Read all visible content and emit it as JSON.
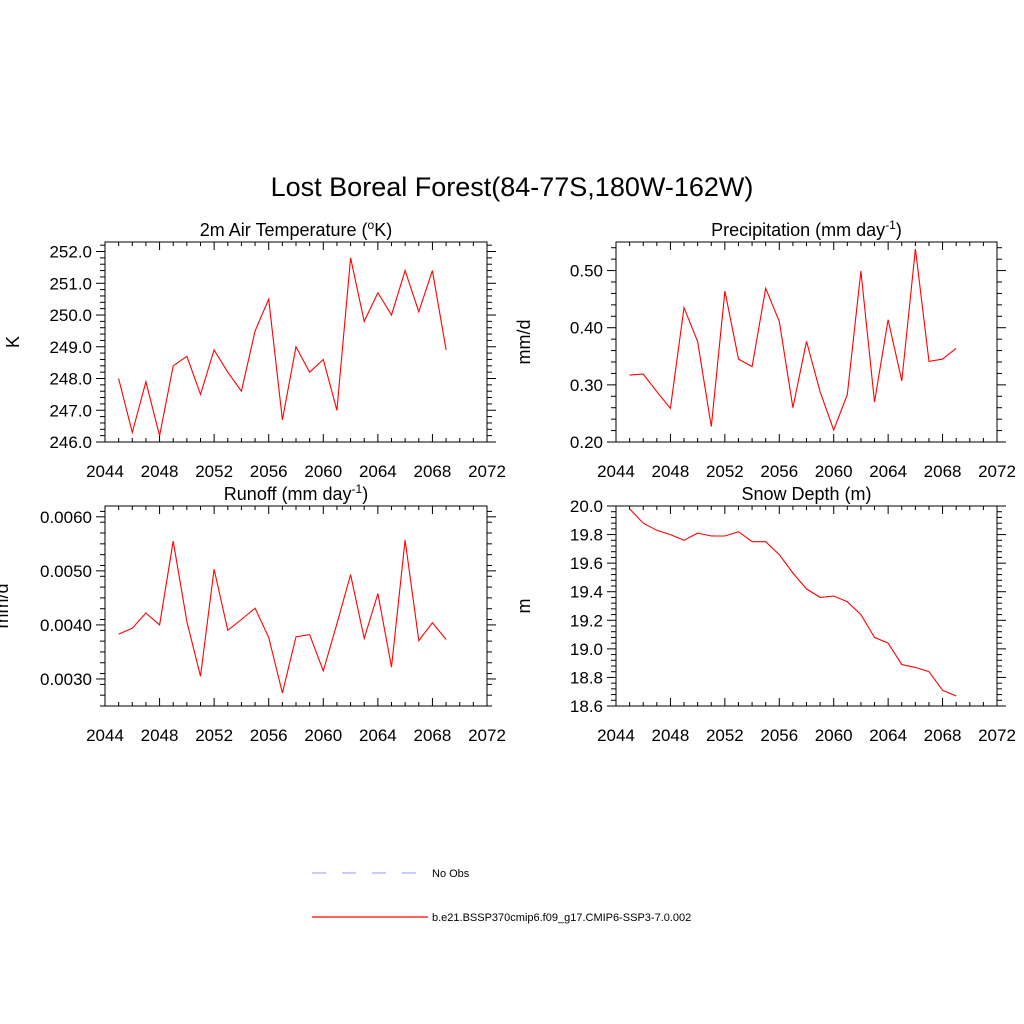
{
  "title": "Lost Boreal Forest(84-77S,180W-162W)",
  "colors": {
    "model": "#ff0000",
    "obs": "#aaaaff",
    "axis": "#000000"
  },
  "legend": {
    "obs_label": "No Obs",
    "model_label": "b.e21.BSSP370cmip6.f09_g17.CMIP6-SSP3-7.0.002"
  },
  "chart_data": [
    {
      "type": "line",
      "title": "2m Air Temperature (",
      "title_sup": "o",
      "title_after": "K)",
      "ylabel": "K",
      "xlim": [
        2044,
        2072
      ],
      "ylim": [
        246.0,
        252.3
      ],
      "xticks": [
        2044,
        2048,
        2052,
        2056,
        2060,
        2064,
        2068,
        2072
      ],
      "yticks": [
        246.0,
        247.0,
        248.0,
        249.0,
        250.0,
        251.0,
        252.0
      ],
      "ytick_labels": [
        "246.0",
        "247.0",
        "248.0",
        "249.0",
        "250.0",
        "251.0",
        "252.0"
      ],
      "x": [
        2045,
        2046,
        2047,
        2048,
        2049,
        2050,
        2051,
        2052,
        2053,
        2054,
        2055,
        2056,
        2057,
        2058,
        2059,
        2060,
        2061,
        2062,
        2063,
        2064,
        2065,
        2066,
        2067,
        2068,
        2069
      ],
      "series": [
        {
          "name": "b.e21.BSSP370cmip6.f09_g17.CMIP6-SSP3-7.0.002",
          "values": [
            248.0,
            246.3,
            247.9,
            246.2,
            248.4,
            248.7,
            247.5,
            248.9,
            248.2,
            247.6,
            249.5,
            250.5,
            246.7,
            249.0,
            248.2,
            248.6,
            247.0,
            251.8,
            249.8,
            250.7,
            250.0,
            251.4,
            250.1,
            251.4,
            248.9
          ]
        }
      ]
    },
    {
      "type": "line",
      "title": "Precipitation (mm day",
      "title_sup": "-1",
      "title_after": ")",
      "ylabel": "mm/d",
      "xlim": [
        2044,
        2072
      ],
      "ylim": [
        0.2,
        0.55
      ],
      "xticks": [
        2044,
        2048,
        2052,
        2056,
        2060,
        2064,
        2068,
        2072
      ],
      "yticks": [
        0.2,
        0.3,
        0.4,
        0.5
      ],
      "ytick_labels": [
        "0.20",
        "0.30",
        "0.40",
        "0.50"
      ],
      "x": [
        2045,
        2046,
        2047,
        2048,
        2049,
        2050,
        2051,
        2052,
        2053,
        2054,
        2055,
        2056,
        2057,
        2058,
        2059,
        2060,
        2061,
        2062,
        2063,
        2064,
        2065,
        2066,
        2067,
        2068,
        2069
      ],
      "series": [
        {
          "name": "b.e21.BSSP370cmip6.f09_g17.CMIP6-SSP3-7.0.002",
          "values": [
            0.317,
            0.319,
            0.288,
            0.259,
            0.435,
            0.376,
            0.227,
            0.464,
            0.345,
            0.332,
            0.469,
            0.411,
            0.26,
            0.376,
            0.288,
            0.221,
            0.283,
            0.499,
            0.27,
            0.414,
            0.307,
            0.538,
            0.341,
            0.345,
            0.364
          ]
        }
      ]
    },
    {
      "type": "line",
      "title": "Runoff (mm day",
      "title_sup": "-1",
      "title_after": ")",
      "ylabel": "mm/d",
      "xlim": [
        2044,
        2072
      ],
      "ylim": [
        0.0025,
        0.0062
      ],
      "xticks": [
        2044,
        2048,
        2052,
        2056,
        2060,
        2064,
        2068,
        2072
      ],
      "yticks": [
        0.003,
        0.004,
        0.005,
        0.006
      ],
      "ytick_labels": [
        "0.0030",
        "0.0040",
        "0.0050",
        "0.0060"
      ],
      "x": [
        2045,
        2046,
        2047,
        2048,
        2049,
        2050,
        2051,
        2052,
        2053,
        2054,
        2055,
        2056,
        2057,
        2058,
        2059,
        2060,
        2061,
        2062,
        2063,
        2064,
        2065,
        2066,
        2067,
        2068,
        2069
      ],
      "series": [
        {
          "name": "b.e21.BSSP370cmip6.f09_g17.CMIP6-SSP3-7.0.002",
          "values": [
            0.00383,
            0.00394,
            0.00422,
            0.004,
            0.00555,
            0.00406,
            0.00305,
            0.00503,
            0.0039,
            0.0041,
            0.00431,
            0.00377,
            0.00274,
            0.00378,
            0.00382,
            0.00315,
            0.00402,
            0.00493,
            0.00375,
            0.00458,
            0.00322,
            0.00557,
            0.00371,
            0.00404,
            0.00373
          ]
        }
      ]
    },
    {
      "type": "line",
      "title": "Snow Depth (m)",
      "title_sup": "",
      "title_after": "",
      "ylabel": "m",
      "xlim": [
        2044,
        2072
      ],
      "ylim": [
        18.6,
        20.0
      ],
      "xticks": [
        2044,
        2048,
        2052,
        2056,
        2060,
        2064,
        2068,
        2072
      ],
      "yticks": [
        18.6,
        18.8,
        19.0,
        19.2,
        19.4,
        19.6,
        19.8,
        20.0
      ],
      "ytick_labels": [
        "18.6",
        "18.8",
        "19.0",
        "19.2",
        "19.4",
        "19.6",
        "19.8",
        "20.0"
      ],
      "x": [
        2045,
        2046,
        2047,
        2048,
        2049,
        2050,
        2051,
        2052,
        2053,
        2054,
        2055,
        2056,
        2057,
        2058,
        2059,
        2060,
        2061,
        2062,
        2063,
        2064,
        2065,
        2066,
        2067,
        2068,
        2069
      ],
      "series": [
        {
          "name": "b.e21.BSSP370cmip6.f09_g17.CMIP6-SSP3-7.0.002",
          "values": [
            19.98,
            19.88,
            19.83,
            19.8,
            19.76,
            19.81,
            19.79,
            19.79,
            19.82,
            19.75,
            19.75,
            19.66,
            19.53,
            19.42,
            19.36,
            19.37,
            19.33,
            19.24,
            19.08,
            19.04,
            18.89,
            18.87,
            18.84,
            18.71,
            18.67
          ]
        }
      ]
    }
  ]
}
